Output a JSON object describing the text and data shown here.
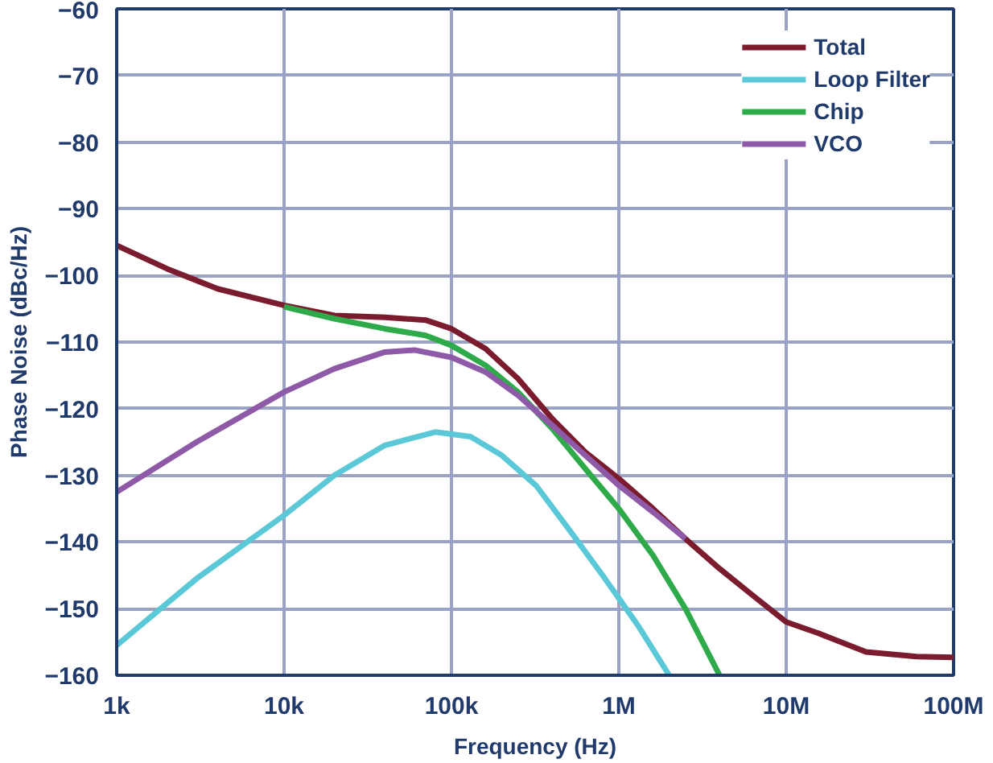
{
  "chart_data": {
    "type": "line",
    "xlabel": "Frequency (Hz)",
    "ylabel": "Phase Noise (dBc/Hz)",
    "log": "x",
    "grid": true,
    "legend": "top right",
    "line_style": "solid",
    "xlim": [
      1000,
      100000000
    ],
    "xticks": [
      {
        "value": 1000,
        "label": "1k"
      },
      {
        "value": 10000,
        "label": "10k"
      },
      {
        "value": 100000,
        "label": "100k"
      },
      {
        "value": 1000000,
        "label": "1M"
      },
      {
        "value": 10000000,
        "label": "10M"
      },
      {
        "value": 100000000,
        "label": "100M"
      }
    ],
    "ylim": [
      -160,
      -60
    ],
    "yticks": [
      -160,
      -150,
      -140,
      -130,
      -120,
      -110,
      -100,
      -90,
      -80,
      -70,
      -60
    ],
    "series": [
      {
        "name": "Total",
        "color": "#7b1c2e",
        "x": [
          1000,
          2000,
          4000,
          10000,
          20000,
          40000,
          70000,
          100000,
          160000,
          250000,
          400000,
          630000,
          1000000,
          1600000,
          2500000,
          4000000,
          6300000,
          10000000,
          16000000,
          30000000,
          60000000,
          100000000
        ],
        "values": [
          -95.5,
          -99,
          -102,
          -104.5,
          -106,
          -106.3,
          -106.7,
          -108,
          -111,
          -115.5,
          -121.5,
          -126.5,
          -130.5,
          -135,
          -139.5,
          -144,
          -148,
          -152,
          -153.8,
          -156.5,
          -157.2,
          -157.3
        ]
      },
      {
        "name": "Loop Filter",
        "color": "#5bc8d8",
        "x": [
          1000,
          3000,
          10000,
          20000,
          40000,
          80000,
          130000,
          200000,
          320000,
          500000,
          800000,
          1300000,
          2000000
        ],
        "values": [
          -155.5,
          -145.5,
          -136,
          -130,
          -125.5,
          -123.5,
          -124.2,
          -127,
          -131.5,
          -138,
          -145,
          -152.5,
          -160
        ]
      },
      {
        "name": "Chip",
        "color": "#2eaa4a",
        "x": [
          10000,
          20000,
          40000,
          70000,
          100000,
          160000,
          250000,
          400000,
          630000,
          1000000,
          1600000,
          2500000,
          4000000
        ],
        "values": [
          -104.7,
          -106.5,
          -108,
          -109,
          -110.5,
          -113.5,
          -117.5,
          -123,
          -129,
          -135,
          -142,
          -150,
          -160
        ]
      },
      {
        "name": "VCO",
        "color": "#8e5aa8",
        "x": [
          1000,
          3000,
          10000,
          20000,
          40000,
          60000,
          100000,
          160000,
          250000,
          400000,
          630000,
          1000000,
          1600000,
          2500000
        ],
        "values": [
          -132.5,
          -125,
          -117.5,
          -114,
          -111.5,
          -111.2,
          -112.3,
          -114.5,
          -118,
          -122.5,
          -127,
          -131.5,
          -135.5,
          -139.5
        ]
      }
    ]
  }
}
